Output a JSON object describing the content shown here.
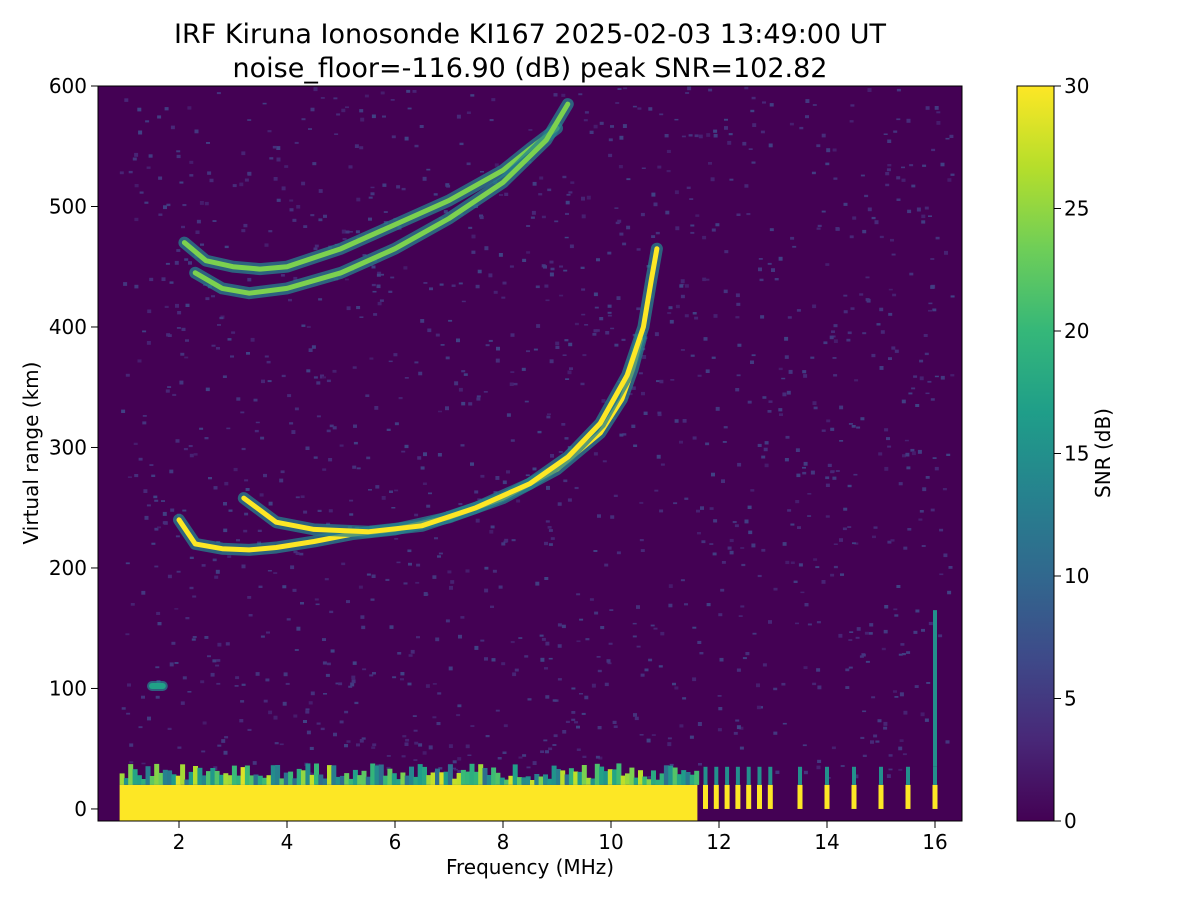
{
  "chart_data": {
    "type": "heatmap",
    "title": "IRF Kiruna Ionosonde KI167 2025-02-03 13:49:00  UT",
    "subtitle": "noise_floor=-116.90 (dB) peak SNR=102.82",
    "xlabel": "Frequency (MHz)",
    "ylabel": "Virtual range (km)",
    "xlim": [
      0.5,
      16.5
    ],
    "ylim": [
      -10,
      600
    ],
    "x_ticks": [
      "2",
      "4",
      "6",
      "8",
      "10",
      "12",
      "14",
      "16"
    ],
    "y_ticks": [
      "0",
      "100",
      "200",
      "300",
      "400",
      "500",
      "600"
    ],
    "colorbar": {
      "label": "SNR (dB)",
      "range": [
        0,
        30
      ],
      "ticks": [
        "0",
        "5",
        "10",
        "15",
        "20",
        "25",
        "30"
      ],
      "colormap": "viridis"
    },
    "grid": false,
    "traces": [
      {
        "x": [
          2.0,
          2.3,
          2.8,
          3.3,
          3.8,
          4.5,
          5.2,
          6.0,
          7.0,
          8.0,
          9.0,
          9.8,
          10.2,
          10.4,
          10.55
        ],
        "y": [
          240,
          220,
          216,
          215,
          217,
          222,
          228,
          232,
          242,
          258,
          282,
          312,
          340,
          365,
          390
        ],
        "snr": 30
      },
      {
        "x": [
          3.2,
          3.8,
          4.5,
          5.5,
          6.5,
          7.5,
          8.5,
          9.2,
          9.8,
          10.3,
          10.6,
          10.75,
          10.85
        ],
        "y": [
          258,
          238,
          232,
          230,
          235,
          250,
          270,
          292,
          320,
          360,
          400,
          440,
          465
        ],
        "snr": 30
      },
      {
        "x": [
          2.1,
          2.5,
          3.0,
          3.5,
          4.0,
          5.0,
          6.0,
          7.0,
          8.0,
          8.5,
          9.0
        ],
        "y": [
          470,
          455,
          450,
          448,
          450,
          465,
          485,
          505,
          530,
          548,
          565
        ],
        "snr": 24
      },
      {
        "x": [
          2.3,
          2.8,
          3.3,
          4.0,
          5.0,
          6.0,
          7.0,
          8.0,
          8.8,
          9.2
        ],
        "y": [
          445,
          432,
          428,
          432,
          445,
          465,
          490,
          520,
          555,
          585
        ],
        "snr": 24
      },
      {
        "x": [
          1.5,
          1.7
        ],
        "y": [
          102,
          102
        ],
        "snr": 17
      }
    ],
    "ground_band": {
      "x_range": [
        0.9,
        11.6
      ],
      "y_range": [
        -10,
        20
      ],
      "snr": 30
    },
    "pulses": [
      11.75,
      11.95,
      12.15,
      12.35,
      12.55,
      12.75,
      12.95,
      13.5,
      14.0,
      14.5,
      15.0,
      15.5,
      16.0
    ]
  }
}
